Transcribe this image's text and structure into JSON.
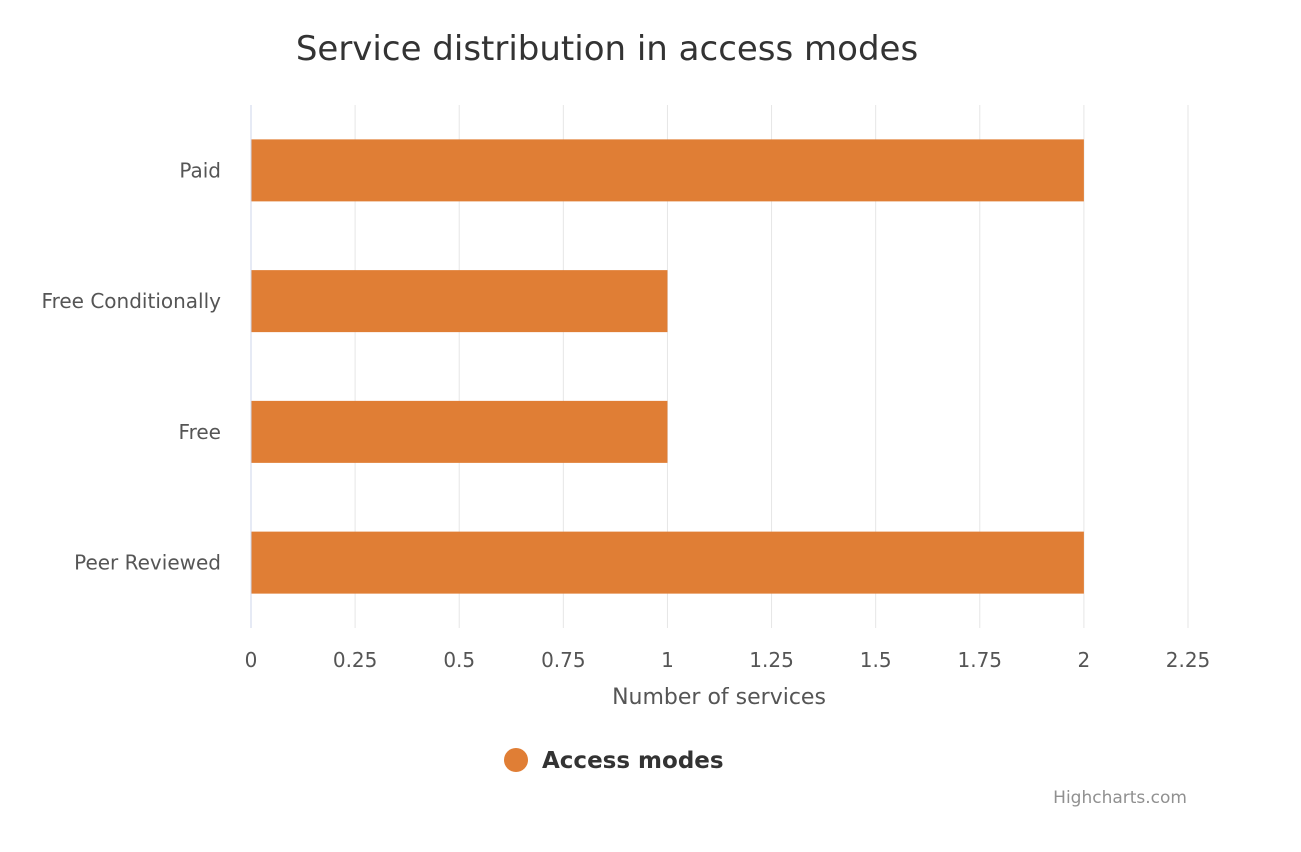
{
  "chart_data": {
    "type": "bar",
    "orientation": "horizontal",
    "title": "Service distribution in access modes",
    "categories": [
      "Paid",
      "Free Conditionally",
      "Free",
      "Peer Reviewed"
    ],
    "series": [
      {
        "name": "Access modes",
        "values": [
          2,
          1,
          1,
          2
        ],
        "color": "#e07e35"
      }
    ],
    "xlabel": "Number of services",
    "ylabel": "",
    "xlim": [
      0,
      2.25
    ],
    "xticks": [
      "0",
      "0.25",
      "0.5",
      "0.75",
      "1",
      "1.25",
      "1.5",
      "1.75",
      "2",
      "2.25"
    ],
    "grid": true,
    "legend": {
      "position": "bottom-center",
      "label": "Access modes",
      "marker": "circle"
    }
  },
  "credits": "Highcharts.com",
  "colors": {
    "bar": "#e07e35",
    "grid": "#e6e6e6",
    "axis_line": "#ccd6eb",
    "text": "#555555",
    "title": "#333333"
  }
}
